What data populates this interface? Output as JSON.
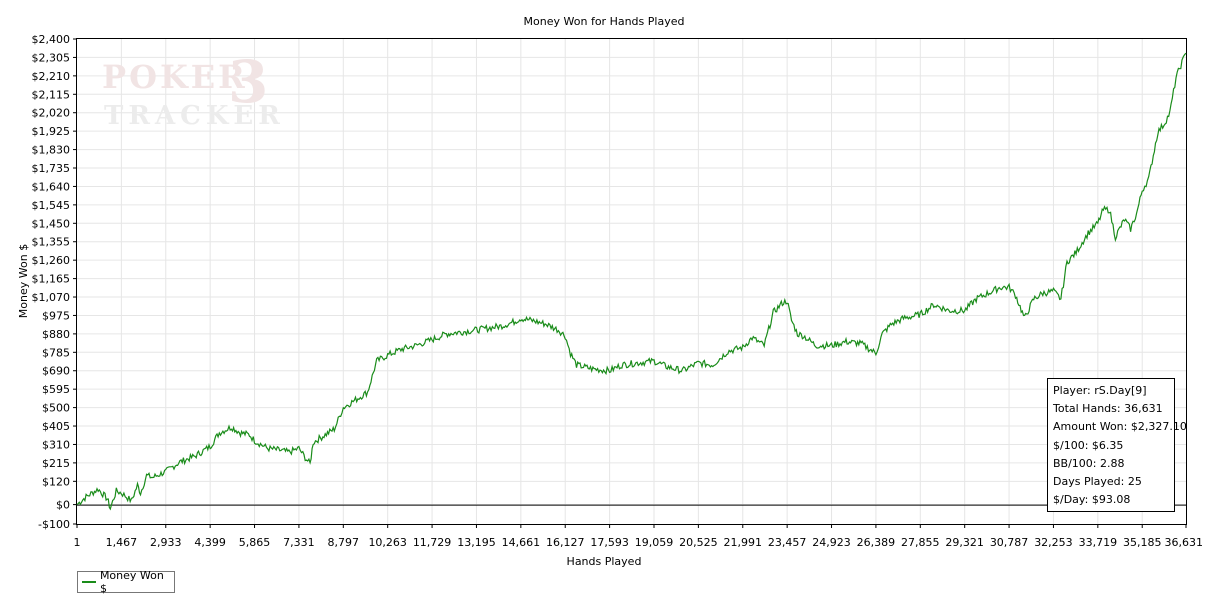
{
  "colors": {
    "line": "#1a8c1a",
    "grid": "#e6e6e6",
    "axis": "#000000"
  },
  "logo": {
    "line1": "POKER",
    "digit": "3",
    "line2": "TRACKER"
  },
  "stats": {
    "player": "Player: rS.Day[9]",
    "total_hands": "Total Hands: 36,631",
    "amount_won": "Amount Won: $2,327.10",
    "per100": "$/100: $6.35",
    "bb100": "BB/100: 2.88",
    "days_played": "Days Played: 25",
    "per_day": "$/Day: $93.08"
  },
  "chart_data": {
    "type": "line",
    "title": "Money Won for Hands Played",
    "xlabel": "Hands Played",
    "ylabel": "Money Won $",
    "xlim": [
      1,
      36631
    ],
    "ylim": [
      -100,
      2400
    ],
    "x_ticks": [
      1,
      1467,
      2933,
      4399,
      5865,
      7331,
      8797,
      10263,
      11729,
      13195,
      14661,
      16127,
      17593,
      19059,
      20525,
      21991,
      23457,
      24923,
      26389,
      27855,
      29321,
      30787,
      32253,
      33719,
      35185,
      36631
    ],
    "x_tick_labels": [
      "1",
      "1,467",
      "2,933",
      "4,399",
      "5,865",
      "7,331",
      "8,797",
      "10,263",
      "11,729",
      "13,195",
      "14,661",
      "16,127",
      "17,593",
      "19,059",
      "20,525",
      "21,991",
      "23,457",
      "24,923",
      "26,389",
      "27,855",
      "29,321",
      "30,787",
      "32,253",
      "33,719",
      "35,185",
      "36,631"
    ],
    "y_ticks": [
      -100,
      0,
      120,
      215,
      310,
      405,
      500,
      595,
      690,
      785,
      880,
      975,
      1070,
      1165,
      1260,
      1355,
      1450,
      1545,
      1640,
      1735,
      1830,
      1925,
      2020,
      2115,
      2210,
      2305,
      2400
    ],
    "y_tick_labels": [
      "-$100",
      "$0",
      "$120",
      "$215",
      "$310",
      "$405",
      "$500",
      "$595",
      "$690",
      "$785",
      "$880",
      "$975",
      "$1,070",
      "$1,165",
      "$1,260",
      "$1,355",
      "$1,450",
      "$1,545",
      "$1,640",
      "$1,735",
      "$1,830",
      "$1,925",
      "$2,020",
      "$2,115",
      "$2,210",
      "$2,305",
      "$2,400"
    ],
    "grid": true,
    "legend_position": "bottom-left",
    "series": [
      {
        "name": "Money Won $",
        "x": [
          1,
          300,
          700,
          1000,
          1100,
          1300,
          1467,
          1800,
          2000,
          2100,
          2300,
          2500,
          2933,
          3400,
          3900,
          4399,
          4700,
          5100,
          5400,
          5700,
          5865,
          6300,
          6700,
          7000,
          7331,
          7500,
          7700,
          7800,
          8200,
          8500,
          8797,
          9200,
          9600,
          9900,
          10263,
          10700,
          11200,
          11729,
          12200,
          12700,
          13195,
          13600,
          14000,
          14400,
          14661,
          15000,
          15500,
          15900,
          16127,
          16300,
          16500,
          17000,
          17593,
          18000,
          18500,
          19059,
          19500,
          20000,
          20525,
          21000,
          21500,
          21991,
          22300,
          22700,
          23000,
          23300,
          23457,
          23600,
          23800,
          24000,
          24400,
          24923,
          25400,
          25900,
          26389,
          26600,
          26900,
          27300,
          27855,
          28300,
          28800,
          29321,
          29700,
          30100,
          30500,
          30787,
          31000,
          31300,
          31600,
          31900,
          32253,
          32500,
          32700,
          33000,
          33400,
          33719,
          33900,
          34100,
          34300,
          34600,
          34800,
          35000,
          35185,
          35400,
          35700,
          35900,
          36100,
          36300,
          36500,
          36631
        ],
        "y": [
          0,
          40,
          80,
          30,
          -20,
          70,
          60,
          20,
          100,
          60,
          150,
          140,
          170,
          220,
          250,
          300,
          370,
          400,
          370,
          360,
          330,
          290,
          280,
          270,
          290,
          250,
          210,
          320,
          360,
          390,
          500,
          540,
          580,
          740,
          770,
          800,
          820,
          850,
          880,
          890,
          900,
          910,
          920,
          940,
          960,
          950,
          930,
          900,
          870,
          780,
          720,
          700,
          690,
          720,
          730,
          740,
          710,
          690,
          730,
          720,
          790,
          810,
          860,
          820,
          990,
          1040,
          1050,
          950,
          880,
          870,
          820,
          820,
          840,
          830,
          780,
          880,
          930,
          960,
          980,
          1030,
          1000,
          1000,
          1060,
          1090,
          1120,
          1120,
          1080,
          960,
          1060,
          1090,
          1100,
          1060,
          1250,
          1300,
          1400,
          1450,
          1520,
          1520,
          1380,
          1470,
          1420,
          1500,
          1620,
          1680,
          1920,
          1960,
          2020,
          2200,
          2280,
          2327
        ]
      }
    ]
  }
}
